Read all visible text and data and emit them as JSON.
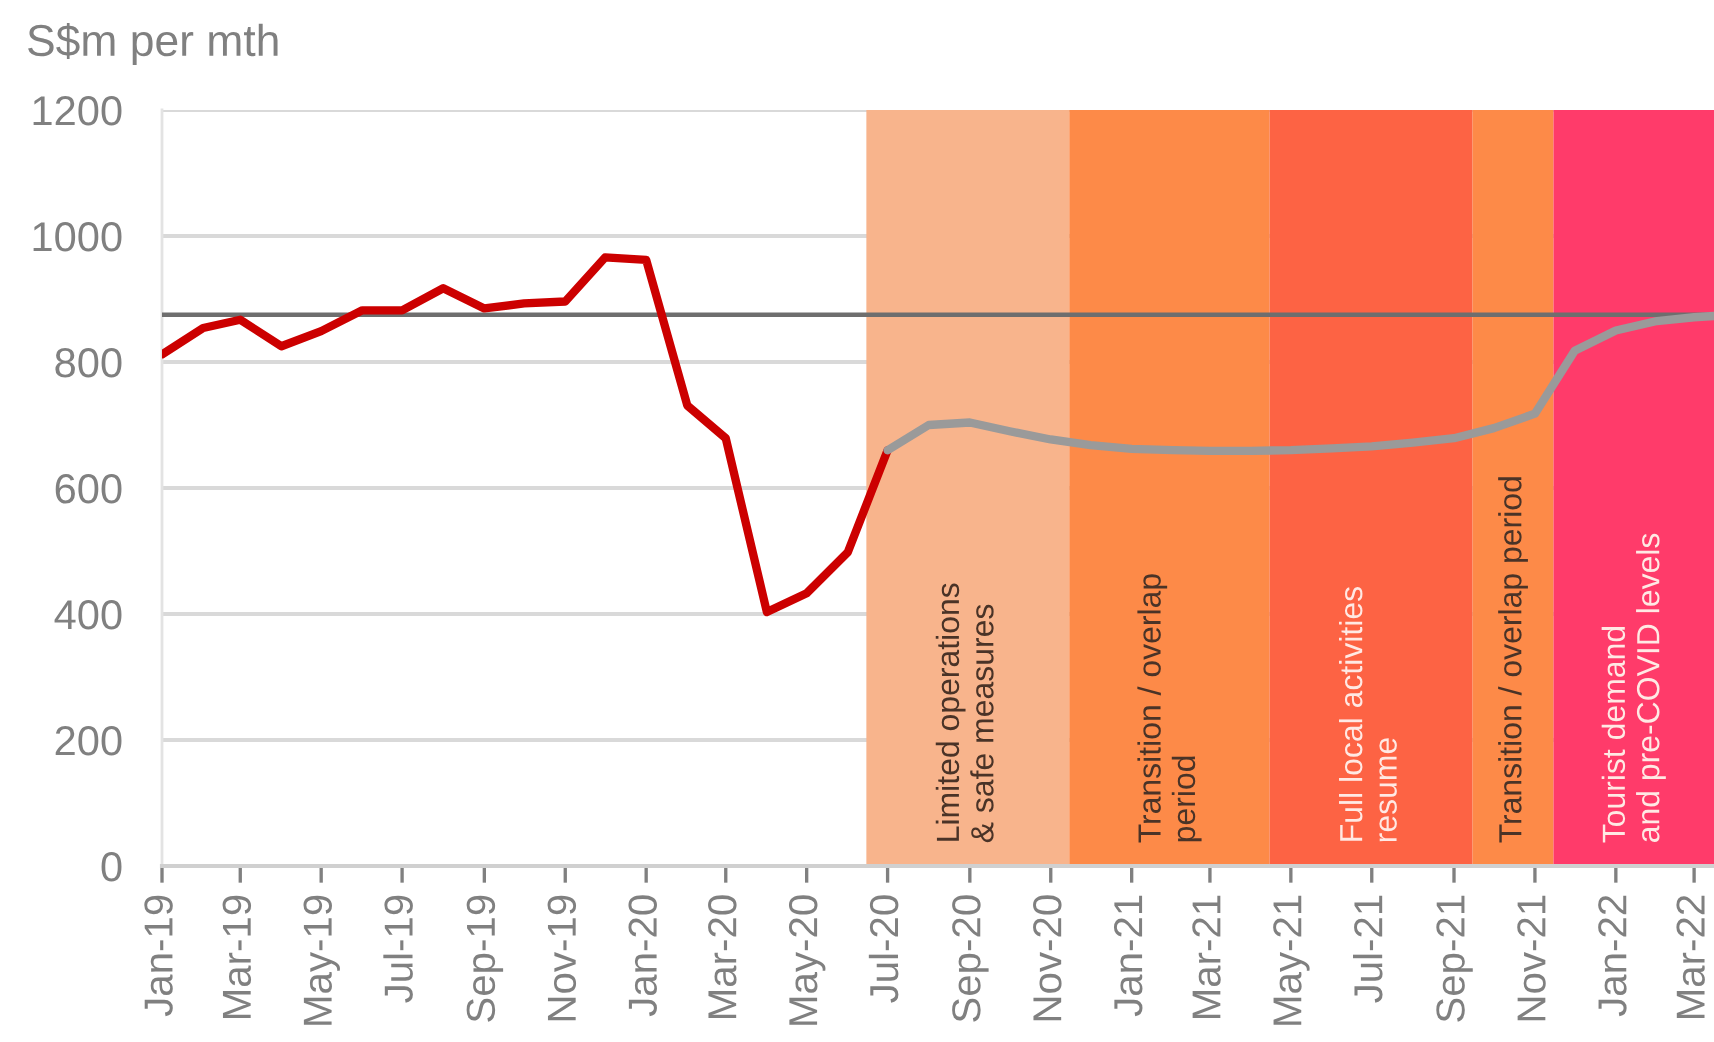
{
  "chart_data": {
    "type": "line",
    "ylabel": "S$m per mth",
    "series": [
      {
        "color": "#cc0000",
        "x": [
          "2019-01",
          "2019-02",
          "2019-03",
          "2019-04",
          "2019-05",
          "2019-06",
          "2019-07",
          "2019-08",
          "2019-09",
          "2019-10",
          "2019-11",
          "2019-12",
          "2020-01",
          "2020-02",
          "2020-03",
          "2020-04",
          "2020-05",
          "2020-06",
          "2020-07"
        ],
        "values": [
          812,
          854,
          867,
          825,
          849,
          882,
          882,
          917,
          885,
          893,
          896,
          966,
          962,
          731,
          679,
          403,
          433,
          498,
          660
        ]
      },
      {
        "color": "#9a9a9a",
        "x": [
          "2020-07",
          "2020-08",
          "2020-09",
          "2020-10",
          "2020-11",
          "2020-12",
          "2021-01",
          "2021-02",
          "2021-03",
          "2021-04",
          "2021-05",
          "2021-06",
          "2021-07",
          "2021-08",
          "2021-09",
          "2021-10",
          "2021-11",
          "2021-12",
          "2022-01",
          "2022-02",
          "2022-03",
          "2022-03-16"
        ],
        "values": [
          660,
          700,
          704,
          690,
          677,
          668,
          662,
          660,
          659,
          659,
          660,
          663,
          666,
          672,
          679,
          695,
          718,
          818,
          850,
          865,
          871,
          873
        ]
      }
    ],
    "xlim": [
      "2019-01",
      "2022-03-16"
    ],
    "ylim": [
      0,
      1200
    ],
    "xticks": [
      {
        "value": "2019-01",
        "label": "Jan-19"
      },
      {
        "value": "2019-03",
        "label": "Mar-19"
      },
      {
        "value": "2019-05",
        "label": "May-19"
      },
      {
        "value": "2019-07",
        "label": "Jul-19"
      },
      {
        "value": "2019-09",
        "label": "Sep-19"
      },
      {
        "value": "2019-11",
        "label": "Nov-19"
      },
      {
        "value": "2020-01",
        "label": "Jan-20"
      },
      {
        "value": "2020-03",
        "label": "Mar-20"
      },
      {
        "value": "2020-05",
        "label": "May-20"
      },
      {
        "value": "2020-07",
        "label": "Jul-20"
      },
      {
        "value": "2020-09",
        "label": "Sep-20"
      },
      {
        "value": "2020-11",
        "label": "Nov-20"
      },
      {
        "value": "2021-01",
        "label": "Jan-21"
      },
      {
        "value": "2021-03",
        "label": "Mar-21"
      },
      {
        "value": "2021-05",
        "label": "May-21"
      },
      {
        "value": "2021-07",
        "label": "Jul-21"
      },
      {
        "value": "2021-09",
        "label": "Sep-21"
      },
      {
        "value": "2021-11",
        "label": "Nov-21"
      },
      {
        "value": "2022-01",
        "label": "Jan-22"
      },
      {
        "value": "2022-03",
        "label": "Mar-22"
      }
    ],
    "yticks": [
      0,
      200,
      400,
      600,
      800,
      1000,
      1200
    ],
    "grid": "y",
    "ref_lines": [
      {
        "axis": "y",
        "value": 875,
        "color": "#6e6e6e"
      }
    ],
    "bands": [
      {
        "axis": "x",
        "from": "2020-06-15",
        "to": "2020-11-15",
        "label": "Limited operations\n& safe measures",
        "color": "#f8b48c"
      },
      {
        "axis": "x",
        "from": "2020-11-15",
        "to": "2021-04-15",
        "label": "Transition / overlap\nperiod",
        "color": "#fd8a48"
      },
      {
        "axis": "x",
        "from": "2021-04-15",
        "to": "2021-09-15",
        "label": "Full local activities\nresume",
        "color": "#fd6344"
      },
      {
        "axis": "x",
        "from": "2021-09-15",
        "to": "2021-11-15",
        "label": "Transition / overlap period",
        "color": "#fd8a48"
      },
      {
        "axis": "x",
        "from": "2021-11-15",
        "to": "2022-03-16",
        "label": "Tourist demand\nand pre-COVID levels",
        "color": "#ff3b6a"
      }
    ]
  }
}
